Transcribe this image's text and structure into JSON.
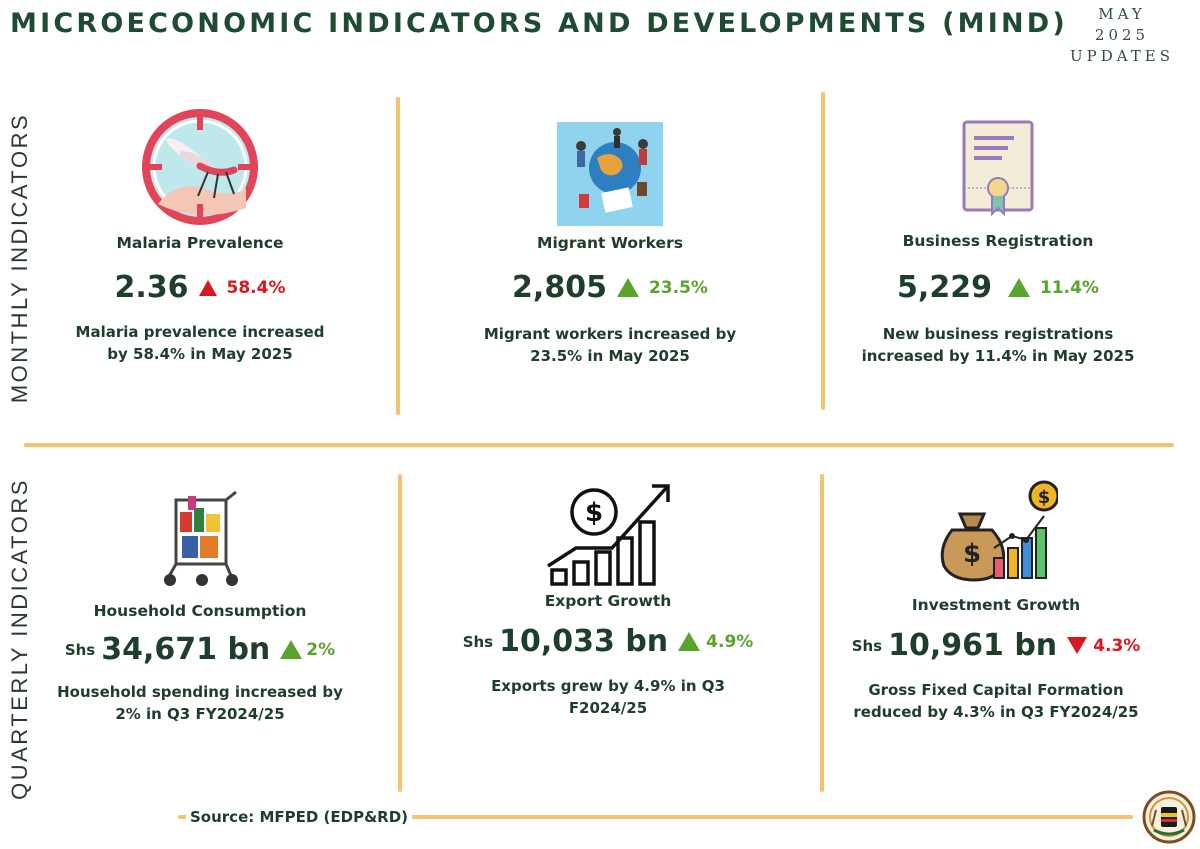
{
  "header": {
    "title": "MICROECONOMIC INDICATORS AND DEVELOPMENTS (MIND)",
    "date_line1": "MAY",
    "date_line2": "2025",
    "date_line3": "UPDATES"
  },
  "sections": {
    "monthly_label": "MONTHLY INDICATORS",
    "quarterly_label": "QUARTERLY INDICATORS"
  },
  "monthly": [
    {
      "name": "Malaria Prevalence",
      "value": "2.36",
      "change": "58.4%",
      "direction": "up",
      "change_color": "#d8181e",
      "icon": "mosquito-target-icon",
      "desc1": "Malaria prevalence increased",
      "desc2": "by 58.4% in May 2025"
    },
    {
      "name": "Migrant Workers",
      "value": "2,805",
      "change": "23.5%",
      "direction": "up",
      "change_color": "#5aa32c",
      "icon": "globe-travelers-icon",
      "desc1": "Migrant workers  increased by",
      "desc2": "23.5% in May 2025"
    },
    {
      "name": "Business Registration",
      "value": "5,229",
      "change": "11.4%",
      "direction": "up",
      "change_color": "#5aa32c",
      "icon": "certificate-icon",
      "desc1": "New business registrations",
      "desc2": "increased by 11.4% in May 2025"
    }
  ],
  "quarterly": [
    {
      "name": "Household Consumption",
      "prefix": "Shs",
      "value": "34,671 bn",
      "change": "2%",
      "direction": "up",
      "change_color": "#5aa32c",
      "icon": "shopping-cart-icon",
      "desc1": "Household spending increased by",
      "desc2": "2% in Q3 FY2024/25"
    },
    {
      "name": "Export Growth",
      "prefix": "Shs",
      "value": "10,033 bn",
      "change": "4.9%",
      "direction": "up",
      "change_color": "#5aa32c",
      "icon": "dollar-growth-chart-icon",
      "desc1": "Exports grew by 4.9% in Q3",
      "desc2": "F2024/25"
    },
    {
      "name": "Investment Growth",
      "prefix": "Shs",
      "value": "10,961 bn",
      "change": "4.3%",
      "direction": "down",
      "change_color": "#d8181e",
      "icon": "money-bag-chart-icon",
      "desc1": "Gross Fixed Capital Formation",
      "desc2": "reduced by 4.3% in Q3 FY2024/25"
    }
  ],
  "footer": {
    "source": "Source: MFPED (EDP&RD)",
    "emblem_icon": "coat-of-arms-icon"
  },
  "colors": {
    "accent_line": "#f2c46d",
    "dark_green": "#1f3d2b",
    "increase_green": "#5aa32c",
    "alert_red": "#d8181e"
  }
}
